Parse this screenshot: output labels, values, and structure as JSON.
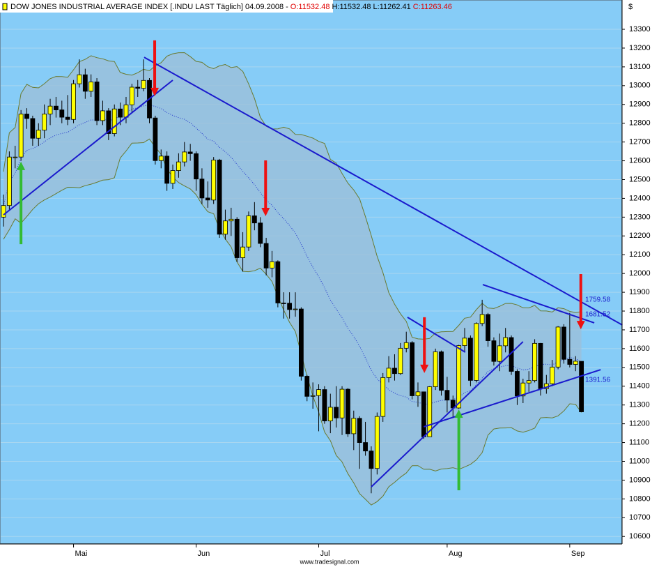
{
  "chart_data": {
    "type": "candlestick",
    "header": [
      {
        "text": "DOW JONES INDUSTRIAL AVERAGE INDEX [.INDU LAST Täglich] 04.09.2008 -",
        "color": "#000000"
      },
      {
        "text": "O:11532.48",
        "color": "#e00000"
      },
      {
        "text": "H:11532.48",
        "color": "#000000"
      },
      {
        "text": "L:11262.41",
        "color": "#000000"
      },
      {
        "text": "C:11263.46",
        "color": "#e00000"
      }
    ],
    "y_axis_label": "$",
    "footer": "www.tradesignal.com",
    "categories": [
      null,
      null,
      null,
      null,
      null,
      null,
      null,
      null,
      null,
      null,
      null,
      null,
      "Mai",
      null,
      null,
      null,
      null,
      null,
      null,
      null,
      null,
      null,
      null,
      null,
      null,
      null,
      null,
      null,
      null,
      null,
      null,
      null,
      null,
      "Jun",
      null,
      null,
      null,
      null,
      null,
      null,
      null,
      null,
      null,
      null,
      null,
      null,
      null,
      null,
      null,
      null,
      null,
      null,
      null,
      null,
      "Jul",
      null,
      null,
      null,
      null,
      null,
      null,
      null,
      null,
      null,
      null,
      null,
      null,
      null,
      null,
      null,
      null,
      null,
      null,
      null,
      null,
      null,
      "Aug",
      null,
      null,
      null,
      null,
      null,
      null,
      null,
      null,
      null,
      null,
      null,
      null,
      null,
      null,
      null,
      null,
      null,
      null,
      null,
      null,
      "Sep",
      null,
      null
    ],
    "open": [
      12300,
      12362,
      12620,
      12620,
      12849,
      12825,
      12720,
      12763,
      12849,
      12891,
      12871,
      12832,
      12820,
      13010,
      13058,
      12970,
      13020,
      12814,
      12866,
      12745,
      12876,
      12832,
      12898,
      12992,
      12986,
      13028,
      12828,
      12601,
      12625,
      12480,
      12548,
      12594,
      12647,
      12638,
      12503,
      12402,
      12391,
      12604,
      12209,
      12280,
      12289,
      12084,
      12141,
      12307,
      12269,
      12160,
      12029,
      12063,
      11843,
      11842,
      11808,
      11811,
      11453,
      11346,
      11350,
      11382,
      11215,
      11288,
      11231,
      11384,
      11147,
      11229,
      11100,
      11055,
      10962,
      11239,
      11446,
      11496,
      11467,
      11602,
      11632,
      11349,
      11370,
      11131,
      11397,
      11583,
      11378,
      11326,
      11284,
      11616,
      11656,
      11431,
      11734,
      11782,
      11642,
      11532,
      11615,
      11659,
      11479,
      11348,
      11417,
      11430,
      11628,
      11387,
      11413,
      11502,
      11715,
      11543,
      11516,
      11532.48
    ],
    "high": [
      12420,
      12650,
      12680,
      12870,
      12880,
      12840,
      12800,
      12900,
      12930,
      12940,
      12920,
      12950,
      13030,
      13140,
      13090,
      13060,
      13040,
      12920,
      12880,
      12900,
      12910,
      12940,
      13010,
      13030,
      13140,
      13040,
      12840,
      12660,
      12650,
      12580,
      12640,
      12700,
      12690,
      12650,
      12560,
      12490,
      12620,
      12610,
      12340,
      12350,
      12300,
      12220,
      12330,
      12380,
      12300,
      12190,
      12120,
      12070,
      11900,
      11900,
      11900,
      11820,
      11460,
      11420,
      11410,
      11400,
      11360,
      11400,
      11400,
      11390,
      11270,
      11240,
      11210,
      11080,
      11260,
      11470,
      11560,
      11570,
      11630,
      11690,
      11640,
      11420,
      11370,
      11400,
      11600,
      11590,
      11450,
      11350,
      11620,
      11710,
      11670,
      11740,
      11860,
      11790,
      11660,
      11680,
      11710,
      11670,
      11490,
      11440,
      11480,
      11650,
      11630,
      11460,
      11540,
      11720,
      11730,
      11790,
      11560,
      11532.48
    ],
    "low": [
      12250,
      12340,
      12560,
      12600,
      12770,
      12680,
      12680,
      12720,
      12790,
      12830,
      12800,
      12790,
      12800,
      12990,
      12930,
      12940,
      12790,
      12790,
      12710,
      12730,
      12790,
      12800,
      12860,
      12940,
      12970,
      12800,
      12580,
      12560,
      12440,
      12450,
      12510,
      12570,
      12600,
      12440,
      12370,
      12350,
      12370,
      12190,
      12180,
      12200,
      12060,
      12010,
      12120,
      12230,
      12140,
      11990,
      11980,
      11820,
      11760,
      11760,
      11770,
      11430,
      11320,
      11280,
      11160,
      11200,
      11150,
      11180,
      11140,
      11130,
      11060,
      10960,
      11030,
      10830,
      10930,
      11210,
      11420,
      11430,
      11460,
      11580,
      11330,
      11290,
      11120,
      11130,
      11380,
      11350,
      11260,
      11230,
      11280,
      11580,
      11400,
      11420,
      11720,
      11610,
      11510,
      11480,
      11580,
      11460,
      11300,
      11310,
      11370,
      11420,
      11350,
      11360,
      11400,
      11490,
      11520,
      11500,
      11480,
      11262.41
    ],
    "close": [
      12362,
      12620,
      12620,
      12849,
      12825,
      12720,
      12763,
      12849,
      12891,
      12871,
      12832,
      12820,
      13010,
      13058,
      12970,
      13020,
      12814,
      12866,
      12745,
      12876,
      12832,
      12898,
      12992,
      12986,
      13028,
      12828,
      12601,
      12625,
      12480,
      12548,
      12594,
      12647,
      12638,
      12503,
      12402,
      12391,
      12604,
      12209,
      12280,
      12289,
      12084,
      12141,
      12307,
      12269,
      12160,
      12029,
      12063,
      11843,
      11842,
      11808,
      11811,
      11453,
      11346,
      11350,
      11382,
      11215,
      11288,
      11231,
      11384,
      11147,
      11229,
      11100,
      11055,
      10962,
      11239,
      11446,
      11496,
      11467,
      11602,
      11632,
      11349,
      11370,
      11131,
      11397,
      11583,
      11378,
      11326,
      11284,
      11616,
      11656,
      11431,
      11734,
      11782,
      11642,
      11532,
      11615,
      11659,
      11479,
      11348,
      11417,
      11430,
      11628,
      11387,
      11413,
      11502,
      11715,
      11543,
      11516,
      11533,
      11263.46
    ],
    "up_color": "#ffff00",
    "down_color": "#000000",
    "ylim": [
      10560,
      13456
    ],
    "yticks": [
      10600,
      10700,
      10800,
      10900,
      11000,
      11100,
      11200,
      11300,
      11400,
      11500,
      11600,
      11700,
      11800,
      11900,
      12000,
      12100,
      12200,
      12300,
      12400,
      12500,
      12600,
      12700,
      12800,
      12900,
      13000,
      13100,
      13200,
      13300
    ],
    "grid": true,
    "trendlines": [
      {
        "x": [
          0,
          29
        ],
        "y": [
          12312,
          13029
        ],
        "color": "#1a1acd"
      },
      {
        "x": [
          24.1,
          106
        ],
        "y": [
          13151,
          11726
        ],
        "color": "#1a1acd"
      },
      {
        "x": [
          63,
          89
        ],
        "y": [
          10864,
          11637
        ],
        "color": "#1a1acd"
      },
      {
        "x": [
          72,
          102.3
        ],
        "y": [
          11184,
          11488
        ],
        "color": "#1a1acd"
      },
      {
        "x": [
          69.2,
          79.1
        ],
        "y": [
          11767,
          11581
        ],
        "color": "#1a1acd"
      },
      {
        "x": [
          82.1,
          101.2
        ],
        "y": [
          11941,
          11737
        ],
        "color": "#1a1acd"
      }
    ],
    "arrows": [
      {
        "x": 25.9,
        "y": [
          13241,
          12944
        ],
        "color": "#ee1111"
      },
      {
        "x": 44.9,
        "y": [
          12602,
          12305
        ],
        "color": "#ee1111"
      },
      {
        "x": 72.1,
        "y": [
          11767,
          11470
        ],
        "color": "#ee1111"
      },
      {
        "x": 98.9,
        "y": [
          11997,
          11703
        ],
        "color": "#ee1111"
      },
      {
        "x": 3,
        "y": [
          12156,
          12595
        ],
        "color": "#33bb33"
      },
      {
        "x": 78,
        "y": [
          10846,
          11276
        ],
        "color": "#33bb33"
      }
    ],
    "annotations": [
      "1759.58",
      "1681.52",
      "1391.56"
    ]
  }
}
